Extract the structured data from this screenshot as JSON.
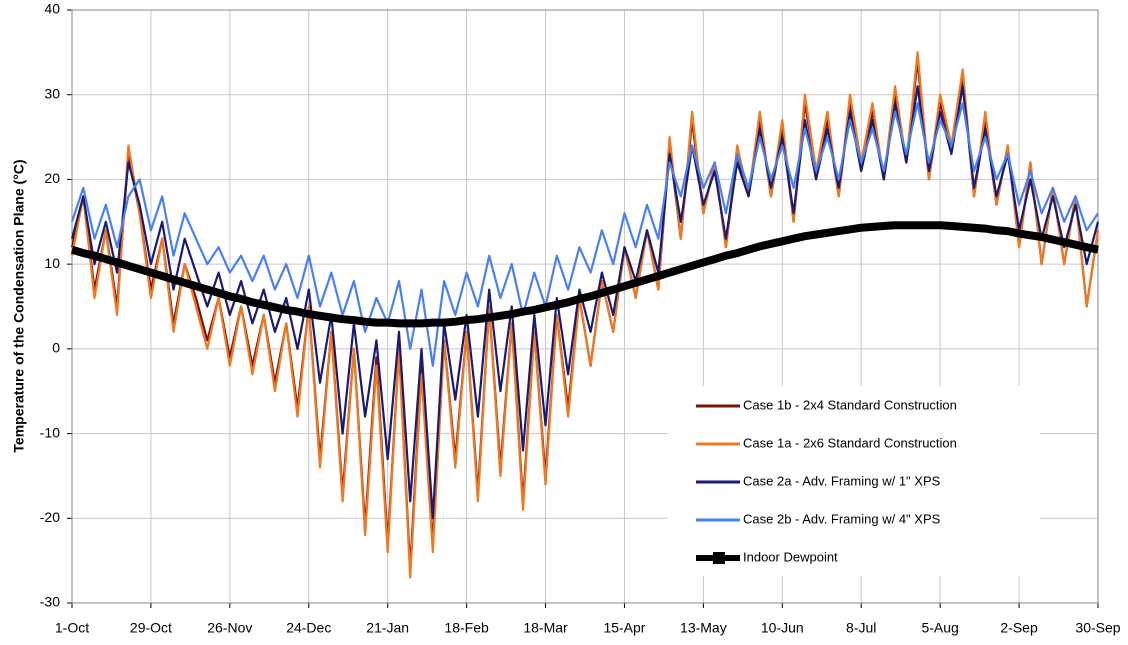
{
  "chart_data": {
    "type": "line",
    "y_label": "Temperature of the Condensation Plane (°C)",
    "x": [
      0,
      4,
      8,
      12,
      16,
      20,
      24,
      28,
      32,
      36,
      40,
      44,
      48,
      52,
      56,
      60,
      64,
      68,
      72,
      76,
      80,
      84,
      88,
      92,
      96,
      100,
      104,
      108,
      112,
      116,
      120,
      124,
      128,
      132,
      136,
      140,
      144,
      148,
      152,
      156,
      160,
      164,
      168,
      172,
      176,
      180,
      184,
      188,
      192,
      196,
      200,
      204,
      208,
      212,
      216,
      220,
      224,
      228,
      232,
      236,
      240,
      244,
      248,
      252,
      256,
      260,
      264,
      268,
      272,
      276,
      280,
      284,
      288,
      292,
      296,
      300,
      304,
      308,
      312,
      316,
      320,
      324,
      328,
      332,
      336,
      340,
      344,
      348,
      352,
      356,
      360,
      364
    ],
    "xlim": [
      0,
      364
    ],
    "xticks": [
      {
        "value": 0,
        "label": "1-Oct"
      },
      {
        "value": 28,
        "label": "29-Oct"
      },
      {
        "value": 56,
        "label": "26-Nov"
      },
      {
        "value": 84,
        "label": "24-Dec"
      },
      {
        "value": 112,
        "label": "21-Jan"
      },
      {
        "value": 140,
        "label": "18-Feb"
      },
      {
        "value": 168,
        "label": "18-Mar"
      },
      {
        "value": 196,
        "label": "15-Apr"
      },
      {
        "value": 224,
        "label": "13-May"
      },
      {
        "value": 252,
        "label": "10-Jun"
      },
      {
        "value": 280,
        "label": "8-Jul"
      },
      {
        "value": 308,
        "label": "5-Aug"
      },
      {
        "value": 336,
        "label": "2-Sep"
      },
      {
        "value": 364,
        "label": "30-Sep"
      }
    ],
    "ylim": [
      -30,
      40
    ],
    "yticks": [
      -30,
      -20,
      -10,
      0,
      10,
      20,
      30,
      40
    ],
    "grid": true,
    "legend": "lower right",
    "series": [
      {
        "name": "Case 1b - 2x4 Standard Construction",
        "color": "#7b1010",
        "values": [
          12,
          18,
          7,
          14,
          5,
          23,
          16,
          7,
          13,
          3,
          10,
          6,
          1,
          6,
          -1,
          5,
          -2,
          4,
          -4,
          3,
          -7,
          5,
          -13,
          2,
          -17,
          0,
          -21,
          -1,
          -23,
          0,
          -26,
          -2,
          -23,
          1,
          -13,
          2,
          -17,
          5,
          -14,
          3,
          -18,
          2,
          -15,
          4,
          -7,
          6,
          -2,
          8,
          2,
          12,
          6,
          14,
          7,
          24,
          13,
          27,
          16,
          22,
          12,
          23,
          18,
          27,
          18,
          26,
          15,
          29,
          21,
          27,
          18,
          29,
          22,
          28,
          20,
          30,
          22,
          34,
          20,
          29,
          24,
          32,
          18,
          27,
          17,
          24,
          12,
          22,
          10,
          19,
          10,
          18,
          5,
          14
        ]
      },
      {
        "name": "Case 1a - 2x6 Standard Construction",
        "color": "#f07820",
        "values": [
          11,
          18,
          6,
          14,
          4,
          24,
          16,
          6,
          13,
          2,
          10,
          5,
          0,
          6,
          -2,
          5,
          -3,
          4,
          -5,
          3,
          -8,
          5,
          -14,
          2,
          -18,
          0,
          -22,
          -2,
          -24,
          0,
          -27,
          -3,
          -24,
          1,
          -14,
          2,
          -18,
          5,
          -15,
          3,
          -19,
          2,
          -16,
          4,
          -8,
          6,
          -2,
          8,
          2,
          12,
          6,
          14,
          7,
          25,
          13,
          28,
          16,
          22,
          12,
          24,
          18,
          28,
          18,
          27,
          15,
          30,
          21,
          28,
          18,
          30,
          22,
          29,
          20,
          31,
          22,
          35,
          20,
          30,
          24,
          33,
          18,
          28,
          17,
          24,
          12,
          22,
          10,
          19,
          10,
          18,
          5,
          14
        ]
      },
      {
        "name": "Case 2a - Adv. Framing w/ 1\" XPS",
        "color": "#1a1a70",
        "values": [
          13,
          18,
          10,
          15,
          9,
          22,
          17,
          10,
          15,
          7,
          13,
          9,
          5,
          9,
          4,
          8,
          3,
          7,
          2,
          6,
          0,
          7,
          -4,
          4,
          -10,
          3,
          -8,
          1,
          -13,
          2,
          -18,
          0,
          -20,
          3,
          -6,
          4,
          -8,
          7,
          -5,
          5,
          -12,
          4,
          -9,
          6,
          -3,
          7,
          2,
          9,
          4,
          12,
          8,
          14,
          9,
          23,
          15,
          24,
          17,
          21,
          13,
          22,
          18,
          26,
          19,
          25,
          16,
          27,
          20,
          26,
          19,
          28,
          21,
          27,
          20,
          29,
          22,
          31,
          21,
          28,
          23,
          31,
          19,
          26,
          18,
          23,
          14,
          20,
          13,
          18,
          12,
          17,
          10,
          15
        ]
      },
      {
        "name": "Case 2b - Adv. Framing w/ 4\" XPS",
        "color": "#4a80f0",
        "values": [
          15,
          19,
          13,
          17,
          12,
          18,
          20,
          14,
          18,
          11,
          16,
          13,
          10,
          12,
          9,
          11,
          8,
          11,
          7,
          10,
          6,
          11,
          5,
          9,
          4,
          8,
          2,
          6,
          3,
          8,
          0,
          7,
          -2,
          8,
          4,
          9,
          5,
          11,
          6,
          10,
          4,
          9,
          5,
          11,
          7,
          12,
          9,
          14,
          10,
          16,
          12,
          17,
          13,
          22,
          18,
          24,
          19,
          22,
          16,
          23,
          19,
          25,
          20,
          24,
          19,
          26,
          21,
          25,
          20,
          27,
          22,
          26,
          21,
          28,
          23,
          29,
          22,
          27,
          24,
          29,
          21,
          25,
          20,
          23,
          17,
          21,
          16,
          19,
          15,
          18,
          14,
          16
        ]
      },
      {
        "name": "Indoor Dewpoint",
        "color": "#000000",
        "values": [
          11.7,
          11.3,
          11.0,
          10.6,
          10.2,
          9.8,
          9.4,
          9.0,
          8.6,
          8.2,
          7.8,
          7.4,
          7.0,
          6.6,
          6.2,
          5.9,
          5.5,
          5.2,
          4.9,
          4.6,
          4.4,
          4.1,
          3.9,
          3.7,
          3.5,
          3.4,
          3.2,
          3.1,
          3.1,
          3.0,
          3.0,
          3.0,
          3.1,
          3.1,
          3.2,
          3.4,
          3.5,
          3.7,
          3.9,
          4.1,
          4.4,
          4.6,
          4.9,
          5.2,
          5.5,
          5.9,
          6.2,
          6.6,
          7.0,
          7.4,
          7.8,
          8.2,
          8.6,
          9.0,
          9.4,
          9.8,
          10.2,
          10.6,
          11.0,
          11.3,
          11.7,
          12.1,
          12.4,
          12.7,
          13.0,
          13.3,
          13.5,
          13.7,
          13.9,
          14.1,
          14.3,
          14.4,
          14.5,
          14.6,
          14.6,
          14.6,
          14.6,
          14.6,
          14.5,
          14.4,
          14.3,
          14.2,
          14.0,
          13.9,
          13.6,
          13.4,
          13.2,
          12.9,
          12.6,
          12.3,
          12.0,
          11.7
        ]
      }
    ]
  }
}
